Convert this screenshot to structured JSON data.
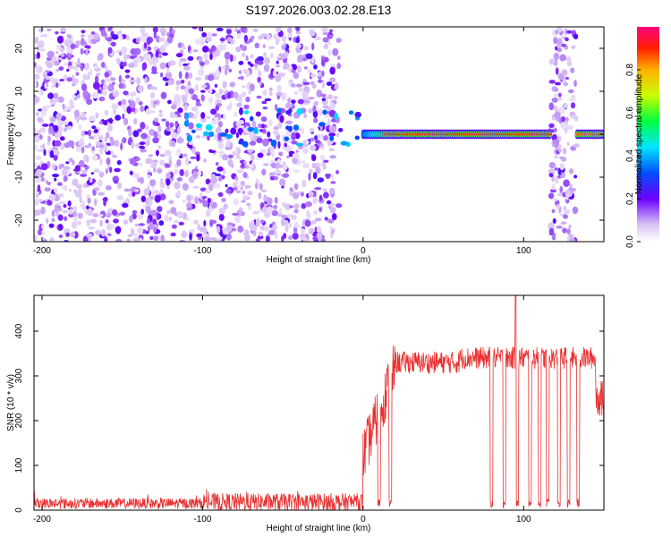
{
  "title": "S197.2026.003.02.28.E13",
  "chart_data": [
    {
      "type": "heatmap",
      "title": "S197.2026.003.02.28.E13",
      "xlabel": "Height of straight line (km)",
      "ylabel": "Frequency (Hz)",
      "xlim": [
        -205,
        150
      ],
      "ylim": [
        -25,
        25
      ],
      "xticks": [
        -200,
        -100,
        0,
        100
      ],
      "yticks": [
        -20,
        -10,
        0,
        10,
        20
      ],
      "colorbar": {
        "label": "Normalized spectral amplitude",
        "range": [
          0.0,
          1.0
        ],
        "ticks": [
          "0.0",
          "0.2",
          "0.4",
          "0.6",
          "0.8"
        ]
      },
      "features": [
        {
          "name": "diffuse noise",
          "x_range": [
            -205,
            -15
          ],
          "y_range": [
            -25,
            25
          ],
          "amplitude": 0.15
        },
        {
          "name": "signal line",
          "x_range": [
            0,
            150
          ],
          "frequency": 0,
          "amplitude": 0.95
        },
        {
          "name": "diffuse noise",
          "x_range": [
            117,
            133
          ],
          "y_range": [
            -25,
            25
          ],
          "amplitude": 0.15
        }
      ]
    },
    {
      "type": "line",
      "title": "",
      "xlabel": "Height of straight line (km)",
      "ylabel": "SNR (10 * v/v)",
      "xlim": [
        -205,
        150
      ],
      "ylim": [
        0,
        480
      ],
      "xticks": [
        -200,
        -100,
        0,
        100
      ],
      "yticks": [
        0,
        100,
        200,
        300,
        400
      ],
      "color": "#e83030",
      "series": [
        {
          "name": "SNR",
          "segments": [
            {
              "x": [
                -205,
                -100
              ],
              "baseline": 15,
              "noise": 12
            },
            {
              "x": [
                -100,
                0
              ],
              "baseline": 18,
              "noise": 20
            },
            {
              "x": [
                0,
                20
              ],
              "baseline": 260,
              "noise": 60
            },
            {
              "x": [
                20,
                60
              ],
              "baseline": 330,
              "noise": 25
            },
            {
              "x": [
                60,
                145
              ],
              "baseline": 340,
              "noise": 25
            },
            {
              "x": [
                145,
                150
              ],
              "baseline": 250,
              "noise": 40
            }
          ],
          "dropouts": [
            10,
            17,
            80,
            88,
            96,
            104,
            110,
            115,
            122,
            128,
            134
          ],
          "peak": {
            "x": 95,
            "y": 480
          }
        }
      ]
    }
  ]
}
